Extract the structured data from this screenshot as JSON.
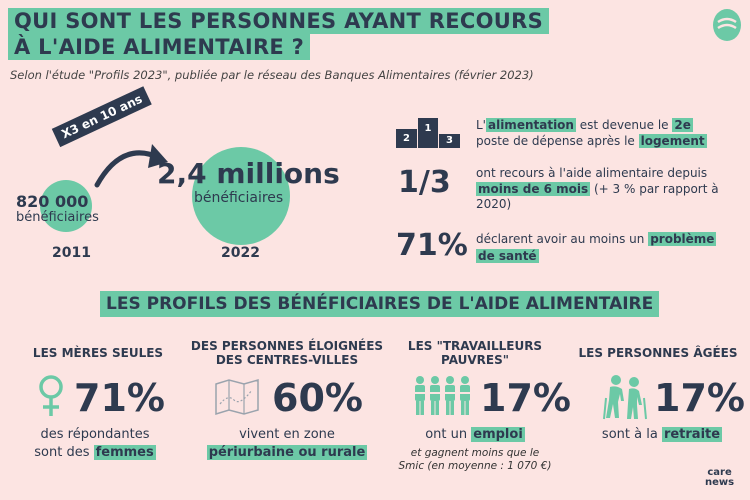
{
  "header": {
    "title_line1": "QUI SONT LES PERSONNES AYANT RECOURS",
    "title_line2": "À L'AIDE ALIMENTAIRE ?",
    "subtitle": "Selon l'étude \"Profils 2023\", publiée par le réseau des Banques Alimentaires (février 2023)"
  },
  "growth": {
    "badge": "X3 en 10 ans",
    "year_2011": "2011",
    "count_2011": "820 000",
    "unit_2011": "bénéficiaires",
    "year_2022": "2022",
    "count_2022": "2,4 millions",
    "unit_2022": "bénéficiaires"
  },
  "podium": {
    "left": "2",
    "center": "1",
    "right": "3"
  },
  "facts": {
    "food": {
      "pre": "L'",
      "hl1": "alimentation",
      "mid": "est devenue le ",
      "hl2": "2e",
      "post": "poste de dépense après le ",
      "hl3": "logement"
    },
    "third": {
      "big": "1/3",
      "pre": "ont recours à l'aide alimentaire depuis ",
      "hl": "moins de 6 mois",
      "post": " (+ 3 % par rapport à 2020)"
    },
    "health": {
      "big": "71%",
      "pre": "déclarent avoir au moins un ",
      "hl1": "problème",
      "hl2": "de santé"
    }
  },
  "banner": "LES PROFILS DES BÉNÉFICIAIRES DE L'AIDE ALIMENTAIRE",
  "profiles": [
    {
      "title": "LES MÈRES SEULES",
      "pct": "71%",
      "desc1": "des répondantes",
      "desc2_pre": "sont des ",
      "desc2_hl": "femmes",
      "icon": "female-symbol-icon"
    },
    {
      "title1": "DES PERSONNES ÉLOIGNÉES",
      "title2": "DES CENTRES-VILLES",
      "pct": "60%",
      "desc1": "vivent en zone",
      "desc2_hl": "périurbaine ou rurale",
      "icon": "map-icon"
    },
    {
      "title1": "LES \"TRAVAILLEURS",
      "title2": "PAUVRES\"",
      "pct": "17%",
      "desc_pre": "ont un ",
      "desc_hl": "emploi",
      "note1": "et gagnent moins que le",
      "note2": "Smic (en moyenne : 1 070 €)",
      "icon": "workers-icon"
    },
    {
      "title": "LES PERSONNES ÂGÉES",
      "pct": "17%",
      "desc_pre": "sont à la ",
      "desc_hl": "retraite",
      "icon": "elderly-couple-icon"
    }
  ],
  "brand": {
    "line1": "care",
    "line2": "news"
  },
  "colors": {
    "accent": "#6cc9a6",
    "background": "#fce4e2",
    "text": "#2e3a4f"
  }
}
